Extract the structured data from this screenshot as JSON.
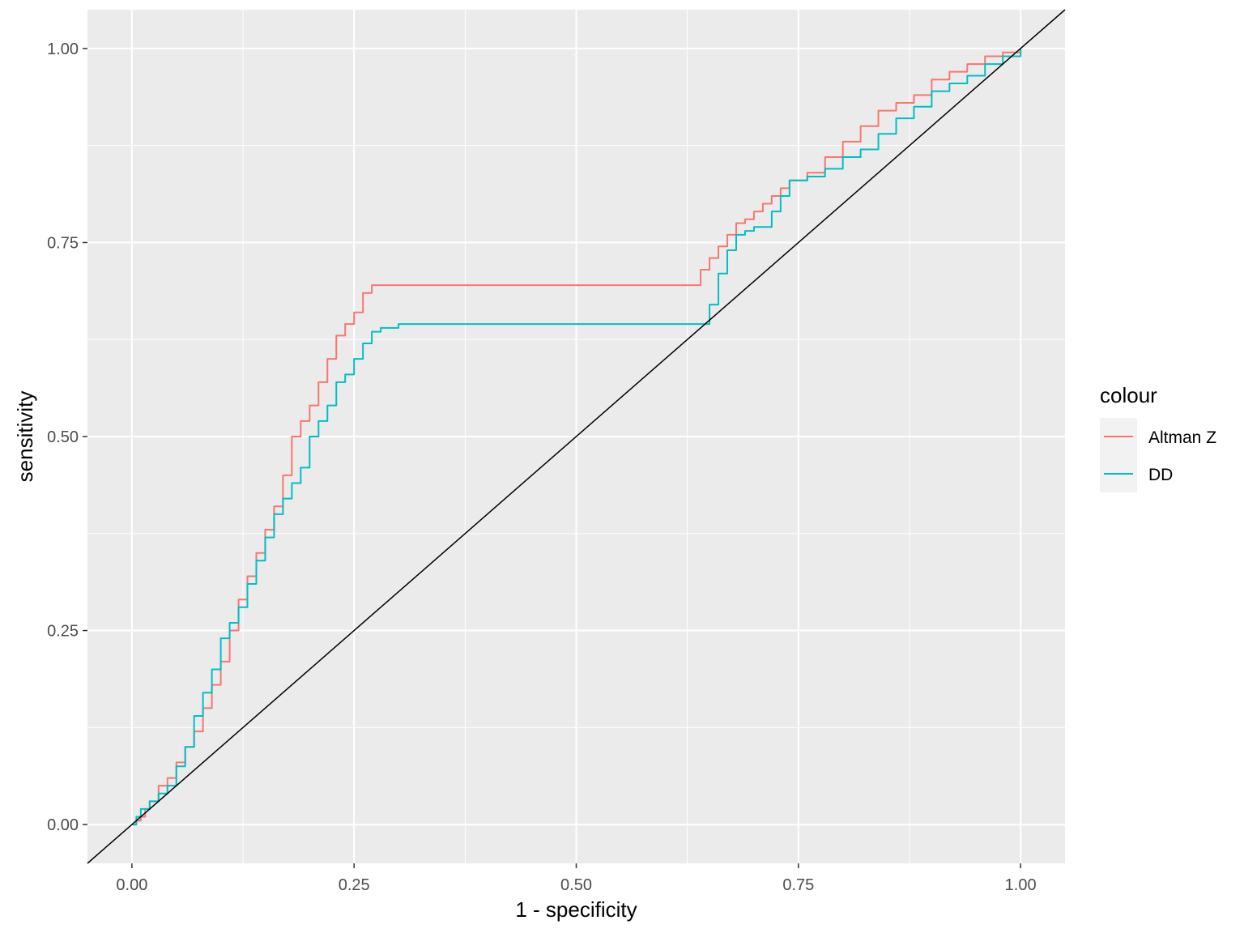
{
  "chart_data": {
    "type": "line",
    "title": "",
    "xlabel": "1 - specificity",
    "ylabel": "sensitivity",
    "xlim": [
      -0.05,
      1.05
    ],
    "ylim": [
      -0.05,
      1.05
    ],
    "x_ticks": [
      0,
      0.25,
      0.5,
      0.75,
      1
    ],
    "x_tick_labels": [
      "0.00",
      "0.25",
      "0.50",
      "0.75",
      "1.00"
    ],
    "y_ticks": [
      0,
      0.25,
      0.5,
      0.75,
      1
    ],
    "y_tick_labels": [
      "0.00",
      "0.25",
      "0.50",
      "0.75",
      "1.00"
    ],
    "grid": true,
    "background": "#ebebeb",
    "legend": {
      "title": "colour",
      "position": "right"
    },
    "reference_line": {
      "x": [
        -0.05,
        1.05
      ],
      "y": [
        -0.05,
        1.05
      ],
      "color": "#000000"
    },
    "series": [
      {
        "name": "Altman Z",
        "color": "#F8766D",
        "x": [
          0,
          0.005,
          0.01,
          0.015,
          0.02,
          0.03,
          0.04,
          0.05,
          0.06,
          0.07,
          0.08,
          0.09,
          0.1,
          0.11,
          0.12,
          0.13,
          0.14,
          0.15,
          0.16,
          0.17,
          0.18,
          0.19,
          0.2,
          0.21,
          0.22,
          0.23,
          0.24,
          0.25,
          0.26,
          0.27,
          0.28,
          0.64,
          0.65,
          0.66,
          0.67,
          0.68,
          0.69,
          0.7,
          0.71,
          0.72,
          0.73,
          0.74,
          0.76,
          0.78,
          0.8,
          0.82,
          0.84,
          0.86,
          0.88,
          0.9,
          0.92,
          0.94,
          0.96,
          0.98,
          1.0
        ],
        "y": [
          0,
          0.005,
          0.01,
          0.02,
          0.03,
          0.05,
          0.06,
          0.08,
          0.1,
          0.12,
          0.15,
          0.18,
          0.21,
          0.25,
          0.29,
          0.32,
          0.35,
          0.38,
          0.41,
          0.45,
          0.5,
          0.52,
          0.54,
          0.57,
          0.6,
          0.63,
          0.645,
          0.66,
          0.685,
          0.695,
          0.695,
          0.715,
          0.73,
          0.745,
          0.76,
          0.775,
          0.78,
          0.79,
          0.8,
          0.81,
          0.82,
          0.83,
          0.84,
          0.86,
          0.88,
          0.9,
          0.92,
          0.93,
          0.94,
          0.96,
          0.97,
          0.98,
          0.99,
          0.995,
          1.0
        ]
      },
      {
        "name": "DD",
        "color": "#00BFC4",
        "x": [
          0,
          0.005,
          0.01,
          0.02,
          0.03,
          0.04,
          0.05,
          0.06,
          0.07,
          0.08,
          0.09,
          0.1,
          0.11,
          0.12,
          0.13,
          0.14,
          0.15,
          0.16,
          0.17,
          0.18,
          0.19,
          0.2,
          0.21,
          0.22,
          0.23,
          0.24,
          0.25,
          0.26,
          0.27,
          0.28,
          0.3,
          0.65,
          0.66,
          0.67,
          0.68,
          0.69,
          0.7,
          0.72,
          0.73,
          0.74,
          0.76,
          0.78,
          0.8,
          0.82,
          0.84,
          0.86,
          0.88,
          0.9,
          0.92,
          0.94,
          0.96,
          0.98,
          1.0
        ],
        "y": [
          0,
          0.01,
          0.02,
          0.03,
          0.04,
          0.05,
          0.075,
          0.1,
          0.14,
          0.17,
          0.2,
          0.24,
          0.26,
          0.28,
          0.31,
          0.34,
          0.37,
          0.4,
          0.42,
          0.44,
          0.46,
          0.5,
          0.52,
          0.54,
          0.57,
          0.58,
          0.6,
          0.62,
          0.635,
          0.64,
          0.645,
          0.67,
          0.71,
          0.74,
          0.76,
          0.765,
          0.77,
          0.79,
          0.81,
          0.83,
          0.835,
          0.845,
          0.86,
          0.87,
          0.89,
          0.91,
          0.925,
          0.945,
          0.955,
          0.965,
          0.98,
          0.99,
          1.0
        ]
      }
    ]
  }
}
